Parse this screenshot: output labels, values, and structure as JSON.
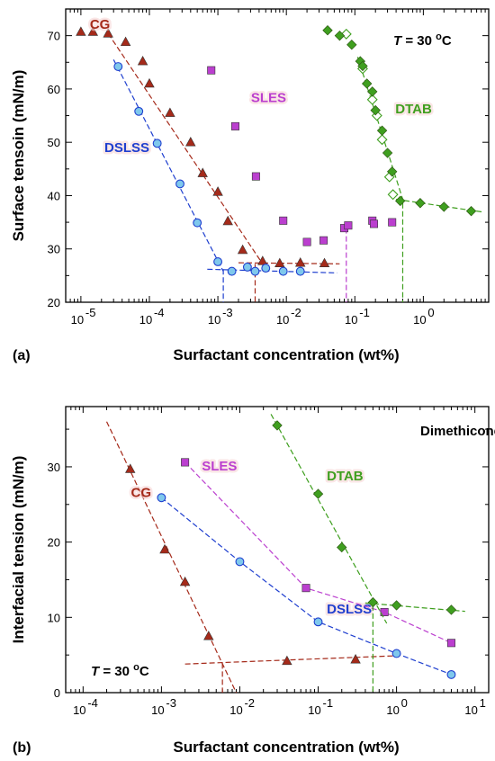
{
  "chart_data": [
    {
      "panel": "(a)",
      "type": "scatter",
      "xlabel": "Surfactant concentration (wt%)",
      "ylabel": "Surface tensoin (mN/m)",
      "xscale": "log",
      "xlim": [
        6e-06,
        9
      ],
      "ylim": [
        20,
        75
      ],
      "xticks": [
        1e-05,
        0.0001,
        0.001,
        0.01,
        0.1,
        1
      ],
      "xtick_labels": [
        [
          "10",
          "-5"
        ],
        [
          "10",
          "-4"
        ],
        [
          "10",
          "-3"
        ],
        [
          "10",
          "-2"
        ],
        [
          "10",
          "-1"
        ],
        [
          "10",
          "0"
        ]
      ],
      "yticks": [
        20,
        30,
        40,
        50,
        60,
        70
      ],
      "yticklabels": [
        "20",
        "30",
        "40",
        "50",
        "60",
        "70"
      ],
      "annotation": {
        "pre": "T",
        "mid": " = 30 ",
        "sup": "o",
        "post": "C"
      },
      "series": [
        {
          "name": "CG",
          "color": "#a52a1a",
          "marker": "triangle",
          "x": [
            1e-05,
            1.5e-05,
            2.5e-05,
            4.5e-05,
            8e-05,
            0.0001,
            0.0002,
            0.0004,
            0.0006,
            0.001,
            0.0014,
            0.0023,
            0.0045,
            0.008,
            0.016,
            0.036
          ],
          "y": [
            70.7,
            70.7,
            70.4,
            68.8,
            65.2,
            61.0,
            55.5,
            50.0,
            44.2,
            40.7,
            35.2,
            29.8,
            27.7,
            27.3,
            27.4,
            27.3
          ],
          "fit": [
            {
              "x": [
                2.5e-05,
                0.0045
              ],
              "y": [
                70.4,
                27.2
              ]
            },
            {
              "x": [
                0.002,
                0.06
              ],
              "y": [
                27.4,
                27.2
              ]
            }
          ],
          "cmc_x": 0.0035,
          "cmc_y": 27.2,
          "label_x": 1.9e-05,
          "label_y": 71.3
        },
        {
          "name": "DSLSS",
          "color": "#1f3fcf",
          "marker": "circle",
          "x": [
            3.5e-05,
            7e-05,
            0.00013,
            0.00028,
            0.0005,
            0.001,
            0.0016,
            0.0027,
            0.0035,
            0.005,
            0.009,
            0.016
          ],
          "y": [
            64.2,
            55.8,
            49.8,
            42.2,
            34.9,
            27.6,
            25.8,
            26.6,
            25.8,
            26.4,
            25.8,
            25.8
          ],
          "fit": [
            {
              "x": [
                3e-05,
                0.0012
              ],
              "y": [
                65.5,
                25.8
              ]
            },
            {
              "x": [
                0.0007,
                0.055
              ],
              "y": [
                26.2,
                25.5
              ]
            }
          ],
          "cmc_x": 0.0012,
          "cmc_y": 26.2,
          "label_x": 4.7e-05,
          "label_y": 48.2
        },
        {
          "name": "SLES",
          "color": "#bb3fcf",
          "marker": "square",
          "x": [
            0.0008,
            0.0018,
            0.0036,
            0.009,
            0.02,
            0.035,
            0.07,
            0.08,
            0.18,
            0.19,
            0.35
          ],
          "y": [
            63.5,
            53.0,
            43.6,
            35.3,
            31.3,
            31.6,
            33.9,
            34.4,
            35.3,
            34.7,
            35.0
          ],
          "fit": [],
          "cmc_x": 0.075,
          "cmc_y": 33.9,
          "label_x": 0.0055,
          "label_y": 57.5
        },
        {
          "name": "DTAB",
          "color": "#3f9f1f",
          "marker": "diamond",
          "x": [
            0.04,
            0.06,
            0.09,
            0.12,
            0.13,
            0.15,
            0.18,
            0.2,
            0.25,
            0.3,
            0.35,
            0.46,
            0.9,
            2.0,
            5.0
          ],
          "y": [
            71.0,
            70.0,
            68.3,
            65.2,
            64.3,
            61.0,
            59.5,
            56.0,
            52.2,
            48.0,
            44.5,
            39.0,
            38.6,
            37.9,
            37.1
          ],
          "open_x": [
            0.075,
            0.13,
            0.18,
            0.21,
            0.25,
            0.32,
            0.36
          ],
          "open_y": [
            70.3,
            63.8,
            58.0,
            55.0,
            50.5,
            43.5,
            40.2
          ],
          "fit": [
            {
              "x": [
                0.11,
                0.52
              ],
              "y": [
                66.0,
                38.6
              ]
            },
            {
              "x": [
                0.4,
                7.5
              ],
              "y": [
                39.3,
                36.9
              ]
            }
          ],
          "cmc_x": 0.5,
          "cmc_y": 38.6,
          "label_x": 0.72,
          "label_y": 55.4
        }
      ]
    },
    {
      "panel": "(b)",
      "type": "scatter",
      "xlabel": "Surfactant concentration (wt%)",
      "ylabel": "Interfacial tension (mN/m)",
      "xscale": "log",
      "xlim": [
        6e-05,
        15
      ],
      "ylim": [
        0,
        38
      ],
      "xticks": [
        0.0001,
        0.001,
        0.01,
        0.1,
        1,
        10
      ],
      "xtick_labels": [
        [
          "10",
          "-4"
        ],
        [
          "10",
          "-3"
        ],
        [
          "10",
          "-2"
        ],
        [
          "10",
          "-1"
        ],
        [
          "10",
          "0"
        ],
        [
          "10",
          "1"
        ]
      ],
      "yticks": [
        0,
        10,
        20,
        30
      ],
      "yticklabels": [
        "0",
        "10",
        "20",
        "30"
      ],
      "oil_label": "Dimethicone",
      "annotation": {
        "pre": "T",
        "mid": " = 30 ",
        "sup": "o",
        "post": "C"
      },
      "series": [
        {
          "name": "CG",
          "color": "#a52a1a",
          "marker": "triangle",
          "x": [
            0.0004,
            0.0011,
            0.002,
            0.004,
            0.04,
            0.3
          ],
          "y": [
            29.7,
            19.0,
            14.7,
            7.5,
            4.2,
            4.4
          ],
          "fit": [
            {
              "x": [
                0.0002,
                0.009
              ],
              "y": [
                36.0,
                0.0
              ]
            },
            {
              "x": [
                0.002,
                1.0
              ],
              "y": [
                3.8,
                4.9
              ]
            }
          ],
          "cmc_x": 0.006,
          "cmc_y": 3.9,
          "label_x": 0.00055,
          "label_y": 26.0
        },
        {
          "name": "DSLSS",
          "color": "#1f3fcf",
          "marker": "circle",
          "x": [
            0.001,
            0.01,
            0.1,
            1.0,
            5.0
          ],
          "y": [
            25.9,
            17.4,
            9.4,
            5.2,
            2.4
          ],
          "fit": [
            {
              "x": [
                0.001,
                0.01,
                0.1,
                1.0,
                5.0
              ],
              "y": [
                25.9,
                17.4,
                9.4,
                5.2,
                2.4
              ]
            }
          ],
          "cmc_x": null,
          "cmc_y": null,
          "label_x": 0.25,
          "label_y": 10.5
        },
        {
          "name": "SLES",
          "color": "#bb3fcf",
          "marker": "square",
          "x": [
            0.002,
            0.07,
            0.7,
            5.0
          ],
          "y": [
            30.6,
            13.9,
            10.7,
            6.6
          ],
          "fit": [
            {
              "x": [
                0.002,
                0.07,
                0.7,
                5.0
              ],
              "y": [
                30.6,
                13.9,
                10.7,
                6.6
              ]
            }
          ],
          "cmc_x": null,
          "cmc_y": null,
          "label_x": 0.0055,
          "label_y": 29.5
        },
        {
          "name": "DTAB",
          "color": "#3f9f1f",
          "marker": "diamond",
          "x": [
            0.03,
            0.1,
            0.2,
            0.5,
            1.0,
            5.0
          ],
          "y": [
            35.5,
            26.4,
            19.3,
            12.0,
            11.6,
            11.0
          ],
          "fit": [
            {
              "x": [
                0.025,
                0.75
              ],
              "y": [
                37.0,
                9.2
              ]
            },
            {
              "x": [
                0.4,
                7.5
              ],
              "y": [
                11.9,
                10.8
              ]
            }
          ],
          "cmc_x": 0.5,
          "cmc_y": 11.6,
          "label_x": 0.22,
          "label_y": 28.2
        }
      ]
    }
  ]
}
